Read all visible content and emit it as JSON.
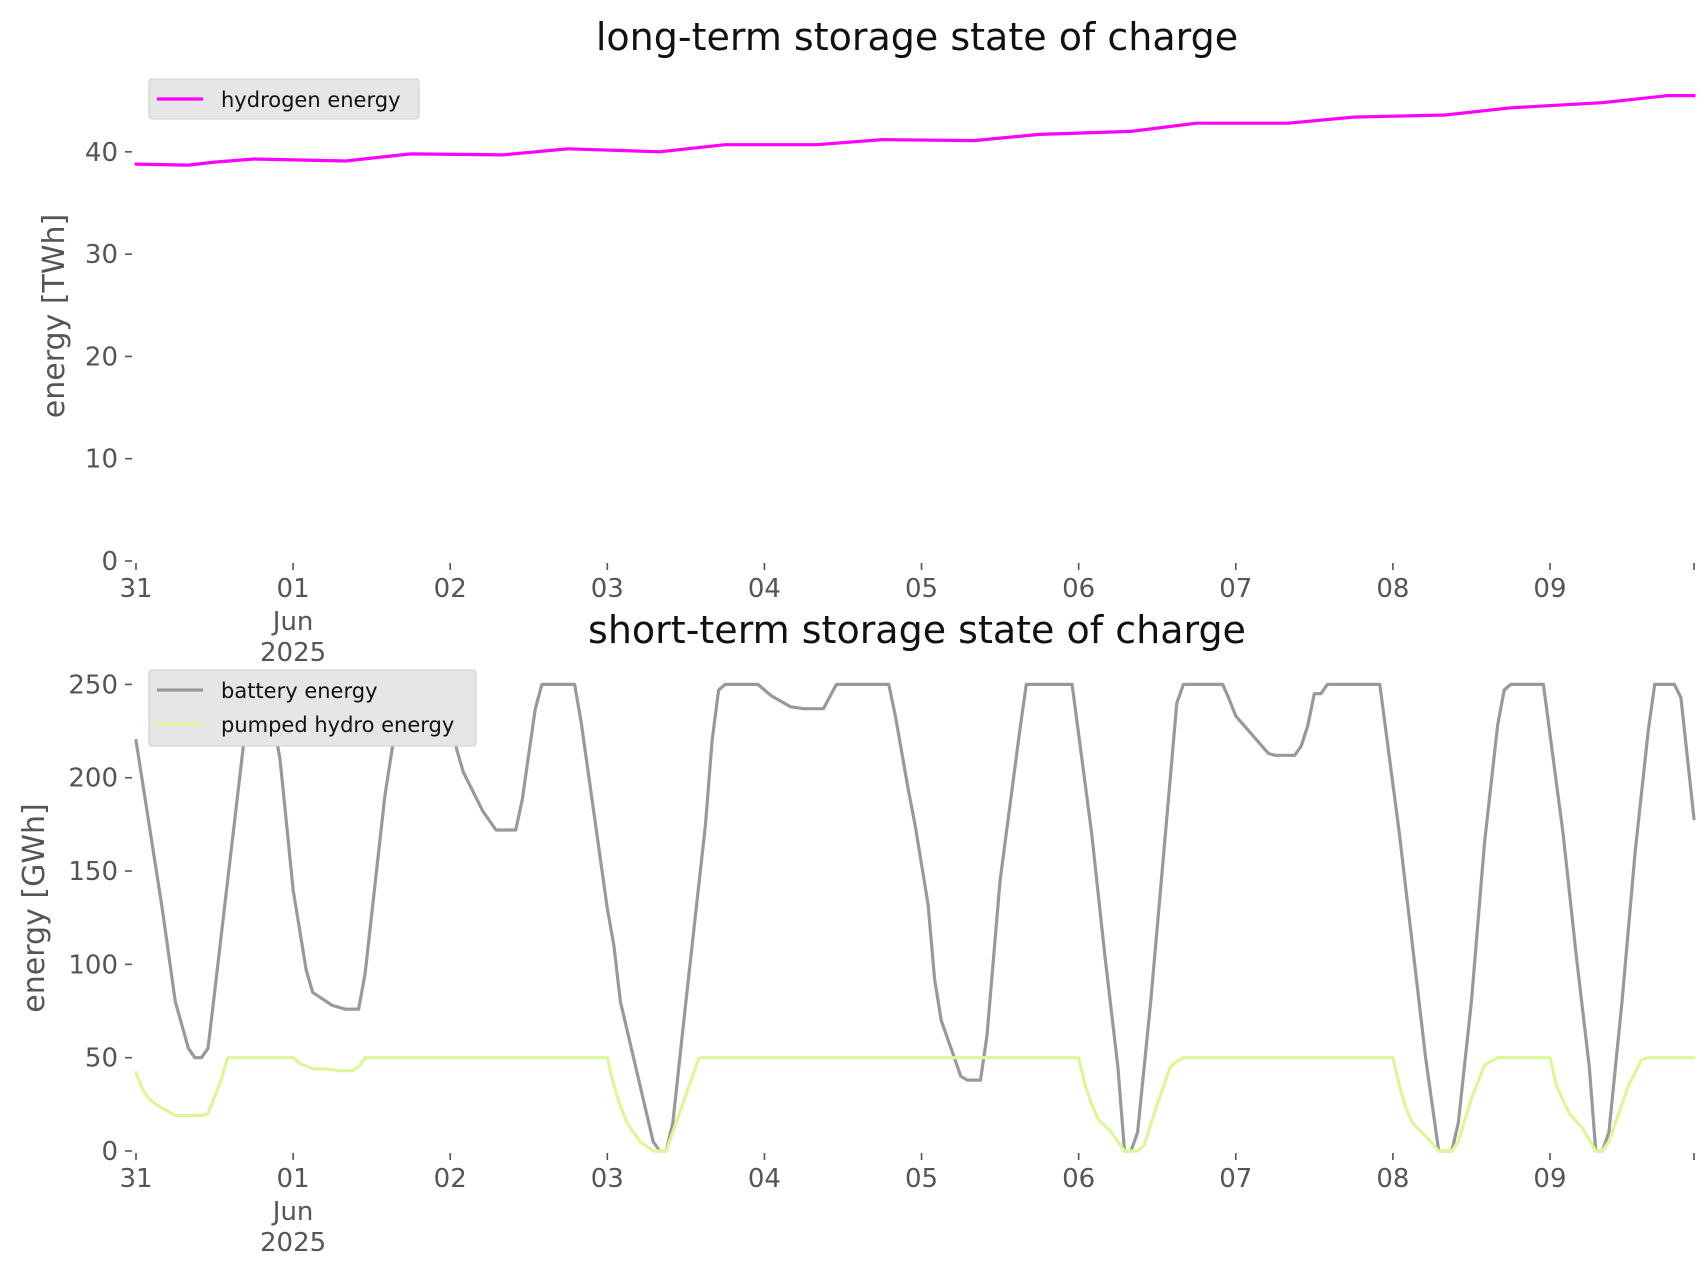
{
  "chart_data": [
    {
      "type": "line",
      "title": "long-term storage state of charge",
      "xlabel": "",
      "ylabel": "energy [TWh]",
      "xlim": [
        "2025-05-31 00:00",
        "2025-06-09 22:00"
      ],
      "ylim": [
        0,
        48
      ],
      "yticks": [
        0,
        10,
        20,
        30,
        40
      ],
      "xticks": [
        {
          "x": "2025-05-31",
          "label": "31"
        },
        {
          "x": "2025-06-01",
          "label": "01",
          "sub1": "Jun",
          "sub2": "2025"
        },
        {
          "x": "2025-06-02",
          "label": "02"
        },
        {
          "x": "2025-06-03",
          "label": "03"
        },
        {
          "x": "2025-06-04",
          "label": "04"
        },
        {
          "x": "2025-06-05",
          "label": "05"
        },
        {
          "x": "2025-06-06",
          "label": "06"
        },
        {
          "x": "2025-06-07",
          "label": "07"
        },
        {
          "x": "2025-06-08",
          "label": "08"
        },
        {
          "x": "2025-06-09",
          "label": "09"
        }
      ],
      "grid": false,
      "legend": "top-left",
      "x": [
        "2025-05-31 00:00",
        "2025-05-31 08:00",
        "2025-05-31 12:00",
        "2025-05-31 18:00",
        "2025-06-01 08:00",
        "2025-06-01 18:00",
        "2025-06-02 08:00",
        "2025-06-02 18:00",
        "2025-06-03 08:00",
        "2025-06-03 18:00",
        "2025-06-04 08:00",
        "2025-06-04 18:00",
        "2025-06-05 08:00",
        "2025-06-05 18:00",
        "2025-06-06 08:00",
        "2025-06-06 18:00",
        "2025-06-07 08:00",
        "2025-06-07 18:00",
        "2025-06-08 08:00",
        "2025-06-08 18:00",
        "2025-06-09 08:00",
        "2025-06-09 18:00",
        "2025-06-09 22:00"
      ],
      "series": [
        {
          "name": "hydrogen energy",
          "color": "#ff00ff",
          "values": [
            38.8,
            38.7,
            39.0,
            39.3,
            39.1,
            39.8,
            39.7,
            40.3,
            40.0,
            40.7,
            40.7,
            41.2,
            41.1,
            41.7,
            42.0,
            42.8,
            42.8,
            43.4,
            43.6,
            44.3,
            44.8,
            45.5,
            45.5
          ]
        }
      ]
    },
    {
      "type": "line",
      "title": "short-term storage state of charge",
      "xlabel": "",
      "ylabel": "energy [GWh]",
      "xlim": [
        "2025-05-31 00:00",
        "2025-06-09 22:00"
      ],
      "ylim": [
        0,
        262
      ],
      "yticks": [
        0,
        50,
        100,
        150,
        200,
        250
      ],
      "xticks": [
        {
          "x": "2025-05-31",
          "label": "31"
        },
        {
          "x": "2025-06-01",
          "label": "01",
          "sub1": "Jun",
          "sub2": "2025"
        },
        {
          "x": "2025-06-02",
          "label": "02"
        },
        {
          "x": "2025-06-03",
          "label": "03"
        },
        {
          "x": "2025-06-04",
          "label": "04"
        },
        {
          "x": "2025-06-05",
          "label": "05"
        },
        {
          "x": "2025-06-06",
          "label": "06"
        },
        {
          "x": "2025-06-07",
          "label": "07"
        },
        {
          "x": "2025-06-08",
          "label": "08"
        },
        {
          "x": "2025-06-09",
          "label": "09"
        }
      ],
      "grid": false,
      "legend": "top-left",
      "series": [
        {
          "name": "battery energy",
          "color": "#999999",
          "points": [
            [
              "2025-05-31 00:00",
              220
            ],
            [
              "2025-05-31 04:00",
              130
            ],
            [
              "2025-05-31 06:00",
              80
            ],
            [
              "2025-05-31 08:00",
              55
            ],
            [
              "2025-05-31 09:00",
              50
            ],
            [
              "2025-05-31 10:00",
              50
            ],
            [
              "2025-05-31 11:00",
              55
            ],
            [
              "2025-05-31 12:00",
              85
            ],
            [
              "2025-05-31 15:00",
              175
            ],
            [
              "2025-05-31 17:00",
              235
            ],
            [
              "2025-05-31 18:00",
              250
            ],
            [
              "2025-05-31 20:00",
              250
            ],
            [
              "2025-05-31 22:00",
              210
            ],
            [
              "2025-05-31 23:00",
              175
            ],
            [
              "2025-06-01 00:00",
              140
            ],
            [
              "2025-06-01 02:00",
              97
            ],
            [
              "2025-06-01 03:00",
              85
            ],
            [
              "2025-06-01 06:00",
              78
            ],
            [
              "2025-06-01 08:00",
              76
            ],
            [
              "2025-06-01 10:00",
              76
            ],
            [
              "2025-06-01 11:00",
              95
            ],
            [
              "2025-06-01 14:00",
              190
            ],
            [
              "2025-06-01 16:00",
              235
            ],
            [
              "2025-06-01 17:00",
              250
            ],
            [
              "2025-06-01 23:00",
              250
            ],
            [
              "2025-06-02 01:00",
              215
            ],
            [
              "2025-06-02 02:00",
              203
            ],
            [
              "2025-06-02 05:00",
              182
            ],
            [
              "2025-06-02 07:00",
              172
            ],
            [
              "2025-06-02 10:00",
              172
            ],
            [
              "2025-06-02 11:00",
              188
            ],
            [
              "2025-06-02 13:00",
              237
            ],
            [
              "2025-06-02 14:00",
              250
            ],
            [
              "2025-06-02 19:00",
              250
            ],
            [
              "2025-06-02 20:00",
              230
            ],
            [
              "2025-06-02 22:00",
              180
            ],
            [
              "2025-06-03 00:00",
              130
            ],
            [
              "2025-06-03 01:00",
              110
            ],
            [
              "2025-06-03 02:00",
              80
            ],
            [
              "2025-06-03 03:00",
              65
            ],
            [
              "2025-06-03 05:00",
              35
            ],
            [
              "2025-06-03 07:00",
              5
            ],
            [
              "2025-06-03 08:00",
              0
            ],
            [
              "2025-06-03 09:00",
              0
            ],
            [
              "2025-06-03 10:00",
              15
            ],
            [
              "2025-06-03 12:00",
              80
            ],
            [
              "2025-06-03 15:00",
              175
            ],
            [
              "2025-06-03 16:00",
              220
            ],
            [
              "2025-06-03 17:00",
              247
            ],
            [
              "2025-06-03 18:00",
              250
            ],
            [
              "2025-06-03 23:00",
              250
            ],
            [
              "2025-06-04 01:00",
              244
            ],
            [
              "2025-06-04 04:00",
              238
            ],
            [
              "2025-06-04 06:00",
              237
            ],
            [
              "2025-06-04 09:00",
              237
            ],
            [
              "2025-06-04 11:00",
              250
            ],
            [
              "2025-06-04 19:00",
              250
            ],
            [
              "2025-06-04 20:00",
              233
            ],
            [
              "2025-06-04 22:00",
              193
            ],
            [
              "2025-06-04 23:00",
              175
            ],
            [
              "2025-06-05 01:00",
              132
            ],
            [
              "2025-06-05 02:00",
              92
            ],
            [
              "2025-06-05 03:00",
              70
            ],
            [
              "2025-06-05 05:00",
              50
            ],
            [
              "2025-06-05 06:00",
              40
            ],
            [
              "2025-06-05 07:00",
              38
            ],
            [
              "2025-06-05 09:00",
              38
            ],
            [
              "2025-06-05 10:00",
              62
            ],
            [
              "2025-06-05 12:00",
              145
            ],
            [
              "2025-06-05 15:00",
              225
            ],
            [
              "2025-06-05 16:00",
              250
            ],
            [
              "2025-06-05 23:00",
              250
            ],
            [
              "2025-06-06 02:00",
              170
            ],
            [
              "2025-06-06 04:00",
              105
            ],
            [
              "2025-06-06 06:00",
              45
            ],
            [
              "2025-06-06 07:00",
              0
            ],
            [
              "2025-06-06 08:00",
              0
            ],
            [
              "2025-06-06 09:00",
              10
            ],
            [
              "2025-06-06 11:00",
              80
            ],
            [
              "2025-06-06 13:00",
              160
            ],
            [
              "2025-06-06 15:00",
              240
            ],
            [
              "2025-06-06 16:00",
              250
            ],
            [
              "2025-06-06 22:00",
              250
            ],
            [
              "2025-06-06 23:00",
              242
            ],
            [
              "2025-06-07 00:00",
              233
            ],
            [
              "2025-06-07 02:00",
              225
            ],
            [
              "2025-06-07 04:00",
              217
            ],
            [
              "2025-06-07 05:00",
              213
            ],
            [
              "2025-06-07 06:00",
              212
            ],
            [
              "2025-06-07 09:00",
              212
            ],
            [
              "2025-06-07 10:00",
              217
            ],
            [
              "2025-06-07 11:00",
              228
            ],
            [
              "2025-06-07 12:00",
              245
            ],
            [
              "2025-06-07 13:00",
              245
            ],
            [
              "2025-06-07 14:00",
              250
            ],
            [
              "2025-06-07 22:00",
              250
            ],
            [
              "2025-06-08 01:00",
              170
            ],
            [
              "2025-06-08 03:00",
              110
            ],
            [
              "2025-06-08 05:00",
              50
            ],
            [
              "2025-06-08 07:00",
              0
            ],
            [
              "2025-06-08 09:00",
              0
            ],
            [
              "2025-06-08 10:00",
              15
            ],
            [
              "2025-06-08 12:00",
              80
            ],
            [
              "2025-06-08 14:00",
              165
            ],
            [
              "2025-06-08 16:00",
              228
            ],
            [
              "2025-06-08 17:00",
              247
            ],
            [
              "2025-06-08 18:00",
              250
            ],
            [
              "2025-06-08 23:00",
              250
            ],
            [
              "2025-06-09 02:00",
              170
            ],
            [
              "2025-06-09 04:00",
              105
            ],
            [
              "2025-06-09 06:00",
              45
            ],
            [
              "2025-06-09 07:00",
              0
            ],
            [
              "2025-06-09 08:00",
              0
            ],
            [
              "2025-06-09 09:00",
              10
            ],
            [
              "2025-06-09 11:00",
              80
            ],
            [
              "2025-06-09 13:00",
              160
            ],
            [
              "2025-06-09 15:00",
              225
            ],
            [
              "2025-06-09 16:00",
              250
            ],
            [
              "2025-06-09 19:00",
              250
            ],
            [
              "2025-06-09 20:00",
              243
            ],
            [
              "2025-06-09 22:00",
              178
            ]
          ]
        },
        {
          "name": "pumped hydro energy",
          "color": "#dcf79b",
          "points": [
            [
              "2025-05-31 00:00",
              42
            ],
            [
              "2025-05-31 01:00",
              33
            ],
            [
              "2025-05-31 02:00",
              28
            ],
            [
              "2025-05-31 03:00",
              25
            ],
            [
              "2025-05-31 05:00",
              21
            ],
            [
              "2025-05-31 06:00",
              19
            ],
            [
              "2025-05-31 08:00",
              19
            ],
            [
              "2025-05-31 10:00",
              19
            ],
            [
              "2025-05-31 11:00",
              20
            ],
            [
              "2025-05-31 13:00",
              38
            ],
            [
              "2025-05-31 14:00",
              50
            ],
            [
              "2025-06-01 00:00",
              50
            ],
            [
              "2025-06-01 01:00",
              47
            ],
            [
              "2025-06-01 03:00",
              44
            ],
            [
              "2025-06-01 05:00",
              44
            ],
            [
              "2025-06-01 07:00",
              43
            ],
            [
              "2025-06-01 09:00",
              43
            ],
            [
              "2025-06-01 10:00",
              45
            ],
            [
              "2025-06-01 11:00",
              50
            ],
            [
              "2025-06-03 00:00",
              50
            ],
            [
              "2025-06-03 01:00",
              35
            ],
            [
              "2025-06-03 02:00",
              24
            ],
            [
              "2025-06-03 03:00",
              15
            ],
            [
              "2025-06-03 05:00",
              5
            ],
            [
              "2025-06-03 07:00",
              0
            ],
            [
              "2025-06-03 09:00",
              0
            ],
            [
              "2025-06-03 11:00",
              20
            ],
            [
              "2025-06-03 14:00",
              50
            ],
            [
              "2025-06-06 00:00",
              50
            ],
            [
              "2025-06-06 01:00",
              35
            ],
            [
              "2025-06-06 02:00",
              25
            ],
            [
              "2025-06-06 03:00",
              17
            ],
            [
              "2025-06-06 05:00",
              10
            ],
            [
              "2025-06-06 06:00",
              5
            ],
            [
              "2025-06-06 07:00",
              0
            ],
            [
              "2025-06-06 09:00",
              0
            ],
            [
              "2025-06-06 10:00",
              3
            ],
            [
              "2025-06-06 12:00",
              25
            ],
            [
              "2025-06-06 14:00",
              45
            ],
            [
              "2025-06-06 15:00",
              48
            ],
            [
              "2025-06-06 16:00",
              50
            ],
            [
              "2025-06-08 00:00",
              50
            ],
            [
              "2025-06-08 01:00",
              35
            ],
            [
              "2025-06-08 02:00",
              23
            ],
            [
              "2025-06-08 03:00",
              15
            ],
            [
              "2025-06-08 05:00",
              8
            ],
            [
              "2025-06-08 07:00",
              0
            ],
            [
              "2025-06-08 09:00",
              0
            ],
            [
              "2025-06-08 10:00",
              5
            ],
            [
              "2025-06-08 12:00",
              28
            ],
            [
              "2025-06-08 14:00",
              46
            ],
            [
              "2025-06-08 16:00",
              50
            ],
            [
              "2025-06-09 00:00",
              50
            ],
            [
              "2025-06-09 01:00",
              35
            ],
            [
              "2025-06-09 02:00",
              27
            ],
            [
              "2025-06-09 03:00",
              20
            ],
            [
              "2025-06-09 05:00",
              12
            ],
            [
              "2025-06-09 07:00",
              0
            ],
            [
              "2025-06-09 08:00",
              0
            ],
            [
              "2025-06-09 09:00",
              5
            ],
            [
              "2025-06-09 12:00",
              35
            ],
            [
              "2025-06-09 14:00",
              49
            ],
            [
              "2025-06-09 15:00",
              50
            ],
            [
              "2025-06-09 22:00",
              50
            ]
          ]
        }
      ]
    }
  ]
}
